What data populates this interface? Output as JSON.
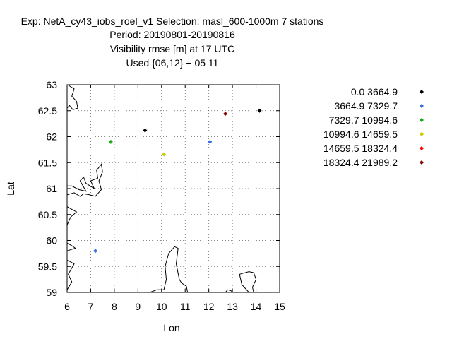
{
  "chart_data": {
    "type": "scatter",
    "title_lines": [
      "Exp: NetA_cy43_iobs_roel_v1   Selection: masl_600-1000m      7 stations",
      "Period: 20190801-20190816",
      "Visibility rmse [m] at  17 UTC",
      "Used {06,12} + 05 11"
    ],
    "xlabel": "Lon",
    "ylabel": "Lat",
    "xlim": [
      6,
      15
    ],
    "ylim": [
      59,
      63
    ],
    "xticks": [
      6,
      7,
      8,
      9,
      10,
      11,
      12,
      13,
      14,
      15
    ],
    "yticks": [
      59,
      59.5,
      60,
      60.5,
      61,
      61.5,
      62,
      62.5,
      63
    ],
    "ytick_labels": [
      "59",
      "59.5",
      "60",
      "60.5",
      "61",
      "61.5",
      "62",
      "62.5",
      "63"
    ],
    "grid": true,
    "legend_position": "right",
    "series": [
      {
        "name": "0.0 3664.9",
        "color": "#000000",
        "points": [
          [
            9.3,
            62.12
          ],
          [
            14.15,
            62.5
          ]
        ]
      },
      {
        "name": "3664.9 7329.7",
        "color": "#3a6fe0",
        "points": [
          [
            12.05,
            61.9
          ],
          [
            7.2,
            59.8
          ]
        ]
      },
      {
        "name": "7329.7 10994.6",
        "color": "#14b014",
        "points": [
          [
            7.85,
            61.9
          ]
        ]
      },
      {
        "name": "10994.6 14659.5",
        "color": "#cccc00",
        "points": [
          [
            10.1,
            61.66
          ]
        ]
      },
      {
        "name": "14659.5 18324.4",
        "color": "#ff0000",
        "points": []
      },
      {
        "name": "18324.4 21989.2",
        "color": "#8b0000",
        "points": [
          [
            12.7,
            62.44
          ]
        ]
      }
    ],
    "coastlines": [
      [
        [
          6.02,
          63.0
        ],
        [
          6.3,
          62.92
        ],
        [
          6.2,
          62.78
        ],
        [
          6.4,
          62.68
        ],
        [
          6.45,
          62.55
        ],
        [
          6.25,
          62.52
        ],
        [
          6.1,
          62.6
        ],
        [
          6.0,
          62.55
        ]
      ],
      [
        [
          6.0,
          61.05
        ],
        [
          6.2,
          61.05
        ],
        [
          6.5,
          60.98
        ],
        [
          6.8,
          60.95
        ],
        [
          6.55,
          61.15
        ],
        [
          6.7,
          61.22
        ],
        [
          6.8,
          61.1
        ],
        [
          7.15,
          61.0
        ],
        [
          7.0,
          61.15
        ],
        [
          7.3,
          61.2
        ],
        [
          7.25,
          61.35
        ],
        [
          7.45,
          61.47
        ],
        [
          7.5,
          61.32
        ],
        [
          7.35,
          61.15
        ],
        [
          7.45,
          60.98
        ],
        [
          7.2,
          60.85
        ],
        [
          6.95,
          60.88
        ],
        [
          6.7,
          60.9
        ],
        [
          6.55,
          60.85
        ],
        [
          6.3,
          60.92
        ],
        [
          6.0,
          60.88
        ]
      ],
      [
        [
          6.0,
          60.3
        ],
        [
          6.15,
          60.45
        ],
        [
          6.4,
          60.55
        ],
        [
          6.2,
          60.6
        ],
        [
          6.0,
          60.65
        ]
      ],
      [
        [
          6.0,
          59.8
        ],
        [
          6.35,
          59.85
        ],
        [
          6.2,
          59.9
        ],
        [
          6.0,
          59.95
        ]
      ],
      [
        [
          6.0,
          59.05
        ],
        [
          6.2,
          59.2
        ],
        [
          6.05,
          59.35
        ],
        [
          6.3,
          59.55
        ],
        [
          6.1,
          59.6
        ],
        [
          6.0,
          59.62
        ]
      ],
      [
        [
          9.5,
          59.0
        ],
        [
          9.8,
          59.05
        ],
        [
          10.1,
          59.05
        ],
        [
          10.2,
          59.25
        ],
        [
          10.15,
          59.5
        ],
        [
          10.3,
          59.75
        ],
        [
          10.55,
          59.88
        ],
        [
          10.7,
          59.85
        ],
        [
          10.62,
          59.55
        ],
        [
          10.75,
          59.25
        ],
        [
          10.85,
          59.18
        ],
        [
          11.05,
          59.12
        ],
        [
          11.1,
          59.0
        ]
      ],
      [
        [
          12.7,
          59.0
        ],
        [
          12.8,
          59.05
        ],
        [
          12.95,
          59.03
        ],
        [
          13.0,
          59.0
        ]
      ],
      [
        [
          13.7,
          59.0
        ],
        [
          13.4,
          59.15
        ],
        [
          13.3,
          59.35
        ],
        [
          13.7,
          59.4
        ],
        [
          13.9,
          59.38
        ],
        [
          14.0,
          59.25
        ],
        [
          13.85,
          59.1
        ],
        [
          13.9,
          59.0
        ]
      ]
    ]
  }
}
